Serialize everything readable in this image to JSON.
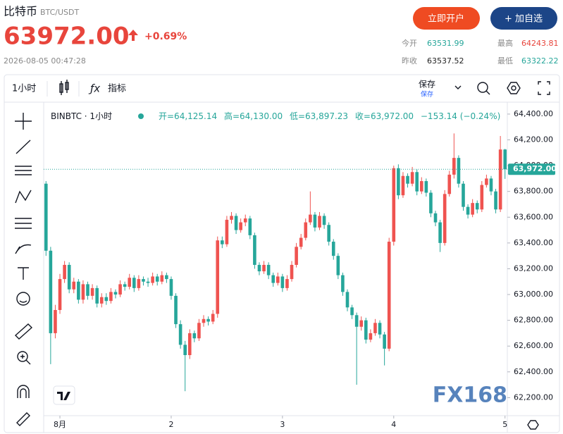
{
  "header": {
    "name": "比特币",
    "pair": "BTC/USDT",
    "price": "63972.00",
    "change": "+0.69%",
    "time": "2026-08-05 00:47:28",
    "buttons": [
      "立即开户",
      "+ 加自选"
    ],
    "stats": [
      {
        "label": "今开",
        "value": "63531.99",
        "color": "#26a69a"
      },
      {
        "label": "最高",
        "value": "64243.81",
        "color": "#e8453c"
      },
      {
        "label": "昨收",
        "value": "63537.52",
        "color": "#222222"
      },
      {
        "label": "最低",
        "value": "63322.22",
        "color": "#26a69a"
      }
    ]
  },
  "toolbar": {
    "interval": "1小时",
    "indicators": "指标",
    "save": "保存",
    "save_sub": "保存"
  },
  "chart_data": {
    "type": "candlestick",
    "legend": {
      "symbol": "BINBTC · 1小时",
      "open": "开=64,125.14",
      "high": "高=64,130.00",
      "low": "低=63,897.23",
      "close": "收=63,972.00",
      "change": "−153.14 (−0.24%)"
    },
    "up_color": "#ef5350",
    "down_color": "#26a69a",
    "categories": [
      null,
      null,
      null,
      "8月",
      null,
      null,
      null,
      null,
      null,
      null,
      null,
      null,
      null,
      null,
      null,
      null,
      null,
      null,
      null,
      null,
      null,
      null,
      null,
      null,
      null,
      null,
      null,
      "2",
      null,
      null,
      null,
      null,
      null,
      null,
      null,
      null,
      null,
      null,
      null,
      null,
      null,
      null,
      null,
      null,
      null,
      null,
      null,
      null,
      null,
      null,
      null,
      "3",
      null,
      null,
      null,
      null,
      null,
      null,
      null,
      null,
      null,
      null,
      null,
      null,
      null,
      null,
      null,
      null,
      null,
      null,
      null,
      null,
      null,
      null,
      null,
      "4",
      null,
      null,
      null,
      null,
      null,
      null,
      null,
      null,
      null,
      null,
      null,
      null,
      null,
      null,
      null,
      null,
      null,
      null,
      null,
      null,
      null,
      null,
      null,
      "5"
    ],
    "candles": [
      [
        63860,
        63880,
        63300,
        63340
      ],
      [
        63340,
        63370,
        62460,
        62700
      ],
      [
        62700,
        62920,
        62660,
        62880
      ],
      [
        62880,
        63160,
        62850,
        63120
      ],
      [
        63120,
        63260,
        63090,
        63230
      ],
      [
        63230,
        63250,
        63010,
        63040
      ],
      [
        63040,
        63130,
        63010,
        63100
      ],
      [
        63100,
        63120,
        62930,
        62960
      ],
      [
        62960,
        63110,
        62930,
        63080
      ],
      [
        63080,
        63100,
        62960,
        62990
      ],
      [
        62990,
        63080,
        62960,
        63050
      ],
      [
        63050,
        63070,
        62900,
        62930
      ],
      [
        62930,
        63010,
        62900,
        62980
      ],
      [
        62980,
        63010,
        62920,
        62950
      ],
      [
        62950,
        63050,
        62930,
        63020
      ],
      [
        63020,
        63040,
        62970,
        63000
      ],
      [
        63000,
        63110,
        62980,
        63080
      ],
      [
        63080,
        63100,
        63030,
        63060
      ],
      [
        63060,
        63160,
        63040,
        63130
      ],
      [
        63130,
        63150,
        63020,
        63050
      ],
      [
        63050,
        63150,
        63030,
        63120
      ],
      [
        63120,
        63140,
        63070,
        63100
      ],
      [
        63100,
        63130,
        63060,
        63090
      ],
      [
        63090,
        63170,
        63070,
        63140
      ],
      [
        63140,
        63160,
        63070,
        63100
      ],
      [
        63100,
        63180,
        63080,
        63150
      ],
      [
        63150,
        63170,
        63090,
        63120
      ],
      [
        63120,
        63140,
        62960,
        62990
      ],
      [
        62990,
        63010,
        62740,
        62770
      ],
      [
        62770,
        62800,
        62580,
        62610
      ],
      [
        62610,
        62640,
        62250,
        62530
      ],
      [
        62530,
        62730,
        62500,
        62700
      ],
      [
        62700,
        62720,
        62630,
        62660
      ],
      [
        62660,
        62810,
        62640,
        62780
      ],
      [
        62780,
        62840,
        62750,
        62810
      ],
      [
        62810,
        62830,
        62760,
        62790
      ],
      [
        62790,
        62880,
        62770,
        62850
      ],
      [
        62850,
        63450,
        62820,
        63420
      ],
      [
        63420,
        63450,
        63360,
        63390
      ],
      [
        63390,
        63610,
        63370,
        63580
      ],
      [
        63580,
        63640,
        63550,
        63610
      ],
      [
        63610,
        63630,
        63470,
        63500
      ],
      [
        63500,
        63590,
        63480,
        63560
      ],
      [
        63560,
        63620,
        63530,
        63590
      ],
      [
        63590,
        63610,
        63430,
        63460
      ],
      [
        63460,
        63480,
        63200,
        63230
      ],
      [
        63230,
        63250,
        63150,
        63180
      ],
      [
        63180,
        63260,
        63160,
        63230
      ],
      [
        63230,
        63250,
        63120,
        63150
      ],
      [
        63150,
        63170,
        63060,
        63090
      ],
      [
        63090,
        63170,
        63070,
        63140
      ],
      [
        63140,
        63160,
        63020,
        63050
      ],
      [
        63050,
        63150,
        63030,
        63120
      ],
      [
        63120,
        63260,
        63100,
        63230
      ],
      [
        63230,
        63400,
        63210,
        63370
      ],
      [
        63370,
        63470,
        63350,
        63440
      ],
      [
        63440,
        63590,
        63420,
        63560
      ],
      [
        63560,
        63800,
        63540,
        63620
      ],
      [
        63620,
        63640,
        63490,
        63520
      ],
      [
        63520,
        63640,
        63500,
        63610
      ],
      [
        63610,
        63630,
        63510,
        63540
      ],
      [
        63540,
        63560,
        63380,
        63410
      ],
      [
        63410,
        63430,
        63270,
        63300
      ],
      [
        63300,
        63320,
        63120,
        63150
      ],
      [
        63150,
        63170,
        62990,
        63020
      ],
      [
        63020,
        63040,
        62870,
        62900
      ],
      [
        62900,
        62920,
        62810,
        62840
      ],
      [
        62840,
        62860,
        62300,
        62750
      ],
      [
        62750,
        62830,
        62720,
        62800
      ],
      [
        62800,
        62820,
        62620,
        62650
      ],
      [
        62650,
        62730,
        62630,
        62700
      ],
      [
        62700,
        62810,
        62680,
        62780
      ],
      [
        62780,
        62800,
        62660,
        62690
      ],
      [
        62690,
        62710,
        62450,
        62580
      ],
      [
        62580,
        63440,
        62560,
        63410
      ],
      [
        63410,
        64000,
        63380,
        63980
      ],
      [
        63980,
        64010,
        63740,
        63770
      ],
      [
        63770,
        63950,
        63750,
        63920
      ],
      [
        63920,
        63940,
        63830,
        63860
      ],
      [
        63860,
        63990,
        63840,
        63950
      ],
      [
        63950,
        63970,
        63770,
        63800
      ],
      [
        63800,
        63910,
        63780,
        63880
      ],
      [
        63880,
        63900,
        63760,
        63790
      ],
      [
        63790,
        63810,
        63600,
        63630
      ],
      [
        63630,
        63650,
        63530,
        63560
      ],
      [
        63560,
        63580,
        63330,
        63400
      ],
      [
        63400,
        63810,
        63380,
        63780
      ],
      [
        63780,
        63960,
        63760,
        63930
      ],
      [
        63930,
        64250,
        63900,
        64060
      ],
      [
        64060,
        64080,
        63830,
        63860
      ],
      [
        63860,
        63880,
        63650,
        63680
      ],
      [
        63680,
        63700,
        63590,
        63620
      ],
      [
        63620,
        63740,
        63600,
        63710
      ],
      [
        63710,
        63730,
        63630,
        63660
      ],
      [
        63660,
        63880,
        63640,
        63850
      ],
      [
        63850,
        63930,
        63830,
        63900
      ],
      [
        63900,
        63920,
        63770,
        63800
      ],
      [
        63800,
        63820,
        63630,
        63660
      ],
      [
        63660,
        64230,
        63640,
        64125.14
      ],
      [
        64125.14,
        64130,
        63897.23,
        63972
      ]
    ],
    "ylim": [
      62060,
      64487
    ],
    "yticks": [
      {
        "value": 62200,
        "label": "62,200.00"
      },
      {
        "value": 62400,
        "label": "62,400.00"
      },
      {
        "value": 62600,
        "label": "62,600.00"
      },
      {
        "value": 62800,
        "label": "62,800.00"
      },
      {
        "value": 63000,
        "label": "63,000.00"
      },
      {
        "value": 63200,
        "label": "63,200.00"
      },
      {
        "value": 63400,
        "label": "63,400.00"
      },
      {
        "value": 63600,
        "label": "63,600.00"
      },
      {
        "value": 63800,
        "label": "63,800.00"
      },
      {
        "value": 64000,
        "label": "64,000.00"
      },
      {
        "value": 64200,
        "label": "64,200.00"
      },
      {
        "value": 64400,
        "label": "64,400.00"
      }
    ],
    "last_price": {
      "value": 63972,
      "label": "63,972.00"
    },
    "grid": false
  },
  "watermark": "FX168"
}
